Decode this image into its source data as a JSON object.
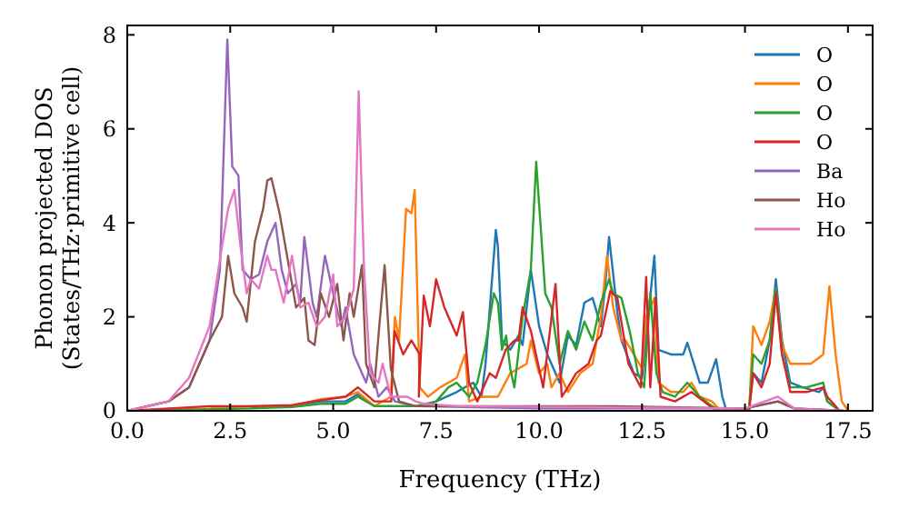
{
  "chart_data": {
    "type": "line",
    "xlabel": "Frequency (THz)",
    "ylabel": "Phonon projected DOS\n(States/THz·primitive cell)",
    "xlim": [
      0,
      18.1
    ],
    "ylim": [
      0,
      8.2
    ],
    "xticks": [
      {
        "value": 0,
        "label": "0.0"
      },
      {
        "value": 2.5,
        "label": "2.5"
      },
      {
        "value": 5,
        "label": "5.0"
      },
      {
        "value": 7.5,
        "label": "7.5"
      },
      {
        "value": 10,
        "label": "10.0"
      },
      {
        "value": 12.5,
        "label": "12.5"
      },
      {
        "value": 15,
        "label": "15.0"
      },
      {
        "value": 17.5,
        "label": "17.5"
      }
    ],
    "yticks": [
      0,
      2,
      4,
      6,
      8
    ],
    "grid": false,
    "legend": "top right",
    "line_style": "solid",
    "series": [
      {
        "name": "O",
        "color": "#1f77b4",
        "x": [
          3,
          4,
          4.7,
          5.3,
          5.6,
          6,
          7,
          7.2,
          7.5,
          8,
          8.4,
          8.6,
          8.7,
          8.95,
          9,
          9.1,
          9.3,
          9.5,
          9.6,
          9.8,
          10,
          10.2,
          10.5,
          10.7,
          10.9,
          11.1,
          11.3,
          11.5,
          11.6,
          11.7,
          11.9,
          12,
          12.3,
          12.5,
          12.8,
          12.9,
          13.2,
          13.5,
          13.6,
          13.9,
          14.1,
          14.3,
          14.45,
          14.55,
          15.1,
          15.2,
          15.4,
          15.6,
          15.75,
          15.9,
          16.1,
          16.4,
          16.8,
          16.9,
          17,
          17.3
        ],
        "values": [
          0.08,
          0.1,
          0.2,
          0.2,
          0.35,
          0.1,
          0.1,
          0.1,
          0.2,
          0.4,
          0.6,
          0.3,
          1,
          3.85,
          3.5,
          1.5,
          1.3,
          1.6,
          1.4,
          3,
          1.8,
          1.2,
          0.6,
          1.6,
          1.4,
          2.3,
          2.4,
          1.8,
          2.6,
          3.7,
          2.1,
          1.5,
          0.8,
          0.7,
          3.3,
          1.3,
          1.2,
          1.2,
          1.45,
          0.6,
          0.6,
          1.1,
          0.3,
          0,
          0.05,
          0.8,
          0.6,
          1.5,
          2.8,
          1.5,
          0.6,
          0.5,
          0.4,
          0.5,
          0.2,
          0
        ]
      },
      {
        "name": "O",
        "color": "#ff7f0e",
        "x": [
          0,
          2,
          3,
          4,
          4.7,
          5.3,
          5.6,
          6,
          6.4,
          6.5,
          6.6,
          6.77,
          6.9,
          6.98,
          7.1,
          7.3,
          7.6,
          8,
          8.2,
          8.3,
          8.6,
          9,
          9.3,
          9.7,
          9.8,
          10,
          10.2,
          10.3,
          10.5,
          10.7,
          11,
          11.3,
          11.5,
          11.65,
          11.8,
          12,
          12.1,
          12.3,
          12.5,
          12.6,
          12.8,
          12.9,
          13.2,
          13.5,
          13.7,
          13.9,
          14.2,
          14.4,
          15.1,
          15.2,
          15.4,
          15.6,
          15.75,
          15.9,
          16.1,
          16.6,
          16.9,
          17.05,
          17.2,
          17.35,
          17.5
        ],
        "values": [
          0,
          0.05,
          0.1,
          0.1,
          0.25,
          0.3,
          0.4,
          0.1,
          0.3,
          2,
          1.5,
          4.3,
          4.2,
          4.7,
          0.5,
          0.3,
          0.5,
          0.7,
          1.2,
          0.2,
          0.3,
          0.3,
          0.8,
          1,
          1.5,
          0.8,
          1,
          0.5,
          0.8,
          0.4,
          0.8,
          1,
          2,
          3.3,
          2.2,
          1.5,
          1.5,
          1.2,
          0.9,
          2,
          2.4,
          0.6,
          0.4,
          0.4,
          0.6,
          0.3,
          0.2,
          0,
          0,
          1.8,
          1.4,
          1.9,
          2.6,
          1.4,
          1,
          1,
          1.2,
          2.65,
          1.2,
          0.2,
          0
        ]
      },
      {
        "name": "O",
        "color": "#2ca02c",
        "x": [
          0,
          2,
          3,
          4,
          4.7,
          5.3,
          5.6,
          6,
          7,
          7.5,
          7.8,
          8,
          8.3,
          8.5,
          8.7,
          8.9,
          9,
          9.1,
          9.2,
          9.3,
          9.4,
          9.6,
          9.8,
          9.93,
          10.15,
          10.3,
          10.5,
          10.7,
          10.9,
          11.1,
          11.3,
          11.5,
          11.7,
          11.8,
          12,
          12.2,
          12.4,
          12.55,
          12.7,
          12.85,
          13,
          13.3,
          13.6,
          13.9,
          14.2,
          14.4,
          15.1,
          15.2,
          15.4,
          15.6,
          15.75,
          15.9,
          16.1,
          16.5,
          16.9,
          17,
          17.3
        ],
        "values": [
          0,
          0.03,
          0.05,
          0.08,
          0.15,
          0.15,
          0.3,
          0.1,
          0.1,
          0.2,
          0.5,
          0.6,
          0.3,
          0.6,
          1.4,
          2.5,
          2.3,
          1.3,
          1.6,
          0.9,
          0.5,
          2,
          3,
          5.3,
          2.5,
          2.2,
          1,
          1.7,
          1.3,
          1.9,
          1.5,
          2.3,
          2.8,
          2.5,
          2.4,
          1.7,
          0.8,
          0.5,
          2.5,
          0.8,
          0.4,
          0.3,
          0.6,
          0.3,
          0.1,
          0,
          0,
          1.2,
          1,
          1.5,
          2.6,
          1.2,
          0.5,
          0.5,
          0.6,
          0.2,
          0
        ]
      },
      {
        "name": "O",
        "color": "#d62728",
        "x": [
          0,
          2,
          3,
          4,
          4.5,
          5.3,
          5.6,
          6,
          6.41,
          6.49,
          6.7,
          6.9,
          7.1,
          7.08,
          7.2,
          7.35,
          7.5,
          7.7,
          8,
          8.15,
          8.3,
          8.5,
          8.55,
          8.8,
          8.95,
          9.19,
          9.4,
          9.5,
          9.6,
          9.8,
          10.1,
          10.4,
          10.55,
          10.7,
          10.9,
          11.2,
          11.4,
          11.5,
          11.73,
          11.9,
          12.17,
          12.35,
          12.47,
          12.6,
          12.7,
          12.83,
          12.95,
          13.3,
          13.7,
          14,
          14.3,
          15.1,
          15.2,
          15.4,
          15.6,
          15.75,
          15.9,
          16.1,
          16.5,
          16.9,
          17,
          17.3
        ],
        "values": [
          0,
          0.1,
          0.1,
          0.12,
          0.2,
          0.3,
          0.5,
          0.2,
          0.2,
          1.7,
          1.2,
          1.5,
          1.2,
          0.3,
          2.45,
          1.8,
          2.8,
          2.2,
          1.6,
          2.1,
          0.6,
          0.2,
          0.3,
          0.8,
          0.7,
          1.3,
          1.5,
          1.5,
          2.2,
          1.7,
          0.5,
          2.7,
          0.3,
          0.5,
          0.8,
          1,
          1.5,
          1.6,
          2.55,
          2.4,
          1,
          0.7,
          0.5,
          2.85,
          0.5,
          2.4,
          0.3,
          0.2,
          0.4,
          0.2,
          0,
          0,
          0.8,
          0.5,
          1,
          2.5,
          1.2,
          0.4,
          0.4,
          0.5,
          0.3,
          0
        ]
      },
      {
        "name": "Ba",
        "color": "#9467bd",
        "x": [
          0,
          1,
          1.5,
          2,
          2.25,
          2.43,
          2.55,
          2.7,
          2.8,
          3,
          3.2,
          3.4,
          3.6,
          3.75,
          3.9,
          4.1,
          4.2,
          4.3,
          4.5,
          4.6,
          4.8,
          5,
          5.2,
          5.3,
          5.5,
          5.6,
          5.8,
          5.9,
          6.1,
          6.3,
          6.5,
          7,
          10,
          15,
          15.8,
          16.2,
          17.4
        ],
        "values": [
          0,
          0.2,
          0.5,
          1.5,
          3,
          7.9,
          5.2,
          5,
          3,
          2.8,
          2.9,
          3.6,
          4,
          3,
          2.5,
          2.7,
          2.3,
          3.7,
          2.3,
          2,
          3.3,
          2.5,
          1.8,
          2.2,
          1.2,
          1,
          0.6,
          1,
          0.3,
          0.5,
          0.2,
          0.1,
          0.05,
          0.05,
          0.2,
          0.05,
          0
        ]
      },
      {
        "name": "Ho",
        "color": "#8c564b",
        "x": [
          0,
          1,
          1.5,
          2,
          2.3,
          2.45,
          2.6,
          2.8,
          2.9,
          3.1,
          3.3,
          3.4,
          3.5,
          3.7,
          3.9,
          4,
          4.1,
          4.3,
          4.4,
          4.55,
          4.7,
          4.9,
          5.1,
          5.25,
          5.4,
          5.5,
          5.7,
          5.8,
          6,
          6.1,
          6.25,
          6.4,
          6.6,
          7,
          11.8,
          15,
          15.8,
          16.2,
          17.4
        ],
        "values": [
          0,
          0.2,
          0.5,
          1.5,
          2,
          3.3,
          2.5,
          2.2,
          1.9,
          3.6,
          4.3,
          4.9,
          4.95,
          4.2,
          3.2,
          2.7,
          2.2,
          2.4,
          1.5,
          1.4,
          2.5,
          2,
          2.7,
          1.5,
          2.5,
          2,
          3.1,
          1,
          0.5,
          1.6,
          3.1,
          0.9,
          0.2,
          0.1,
          0.1,
          0.05,
          0.2,
          0.05,
          0
        ]
      },
      {
        "name": "Ho",
        "color": "#e377c2",
        "x": [
          0,
          1,
          1.5,
          2,
          2.3,
          2.45,
          2.6,
          2.75,
          2.9,
          3,
          3.2,
          3.4,
          3.5,
          3.6,
          3.8,
          4,
          4.2,
          4.4,
          4.6,
          4.8,
          5,
          5.1,
          5.3,
          5.5,
          5.62,
          5.75,
          5.9,
          6.1,
          6.2,
          6.4,
          6.8,
          7,
          7.2,
          8,
          15,
          15.8,
          16.2,
          17.4
        ],
        "values": [
          0,
          0.2,
          0.7,
          1.8,
          3.5,
          4.3,
          4.7,
          3.5,
          2.5,
          2.8,
          2.6,
          3.3,
          3,
          3,
          2.3,
          3.3,
          2.2,
          2.3,
          1.8,
          2,
          2.9,
          1.8,
          2,
          2.6,
          6.8,
          3,
          0.8,
          0.6,
          1,
          0.3,
          0.3,
          0.2,
          0.15,
          0.1,
          0.05,
          0.3,
          0.05,
          0
        ]
      }
    ]
  }
}
